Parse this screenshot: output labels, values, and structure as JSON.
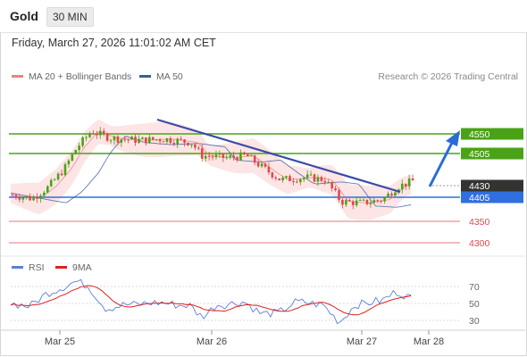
{
  "header": {
    "title": "Gold",
    "timeframe": "30 MIN"
  },
  "datetime": "Friday, March 27, 2026 11:01:02 AM CET",
  "legend": {
    "ma20_label": "MA 20 + Bollinger Bands",
    "ma20_color": "#f08080",
    "ma50_label": "MA 50",
    "ma50_color": "#3b5ba5",
    "copyright": "Research © 2026 Trading Central"
  },
  "price_levels": [
    {
      "value": "4550",
      "kind": "resistance",
      "color": "#4aa316"
    },
    {
      "value": "4505",
      "kind": "resistance",
      "color": "#4aa316"
    },
    {
      "value": "4430",
      "kind": "current",
      "color": "#333333"
    },
    {
      "value": "4405",
      "kind": "pivot",
      "color": "#2f6fe0"
    },
    {
      "value": "4350",
      "kind": "support",
      "color": "#e0474c"
    },
    {
      "value": "4300",
      "kind": "support",
      "color": "#e0474c"
    }
  ],
  "rsi_legend": {
    "rsi_label": "RSI",
    "rsi_color": "#5b7fd6",
    "ma_label": "9MA",
    "ma_color": "#e02020"
  },
  "rsi_levels": [
    "70",
    "50",
    "30"
  ],
  "x_labels": [
    "Mar 25",
    "Mar 26",
    "Mar 27",
    "Mar 28"
  ],
  "colors": {
    "bull": "#4aa316",
    "bear": "#e0474c",
    "band_fill": "#fde0e0",
    "trend_arrow": "#2a6bd6",
    "trendline": "#3a4aa8"
  },
  "chart_data": [
    {
      "type": "candlestick",
      "title": "Gold",
      "price_axis_labels": [
        4550,
        4505,
        4430,
        4405,
        4350,
        4300
      ],
      "x_ticks": [
        "Mar 25",
        "Mar 26",
        "Mar 27",
        "Mar 28"
      ],
      "series": [
        {
          "name": "MA 20 + Bollinger Bands"
        },
        {
          "name": "MA 50"
        }
      ]
    },
    {
      "type": "line",
      "title": "RSI",
      "ylim": [
        30,
        70
      ],
      "y_ticks": [
        70,
        50,
        30
      ],
      "series": [
        {
          "name": "RSI"
        },
        {
          "name": "9MA"
        }
      ]
    }
  ]
}
